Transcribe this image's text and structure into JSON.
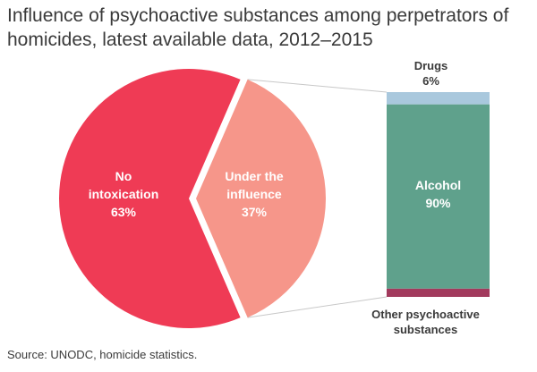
{
  "title": "Influence of psychoactive substances among perpetrators of homicides, latest available data, 2012–2015",
  "source": "Source: UNODC, homicide statistics.",
  "colors": {
    "no_intoxication": "#ef3b55",
    "under_influence": "#f6968a",
    "drugs": "#a9c8dd",
    "alcohol": "#5fa18c",
    "other": "#a23a5d",
    "connector": "#c8c8c8"
  },
  "chart_data": [
    {
      "type": "pie",
      "slices": [
        {
          "label_lines": [
            "No",
            "intoxication"
          ],
          "pct_text": "63%",
          "value": 63
        },
        {
          "label_lines": [
            "Under the",
            "influence"
          ],
          "pct_text": "37%",
          "value": 37
        }
      ]
    },
    {
      "type": "bar",
      "stacked": true,
      "segments": [
        {
          "label_lines": [
            "Drugs"
          ],
          "pct_text": "6%",
          "value": 6
        },
        {
          "label_lines": [
            "Alcohol"
          ],
          "pct_text": "90%",
          "value": 90
        },
        {
          "label_lines": [
            "Other psychoactive",
            "substances"
          ],
          "pct_text": "",
          "value": 4
        }
      ]
    }
  ]
}
